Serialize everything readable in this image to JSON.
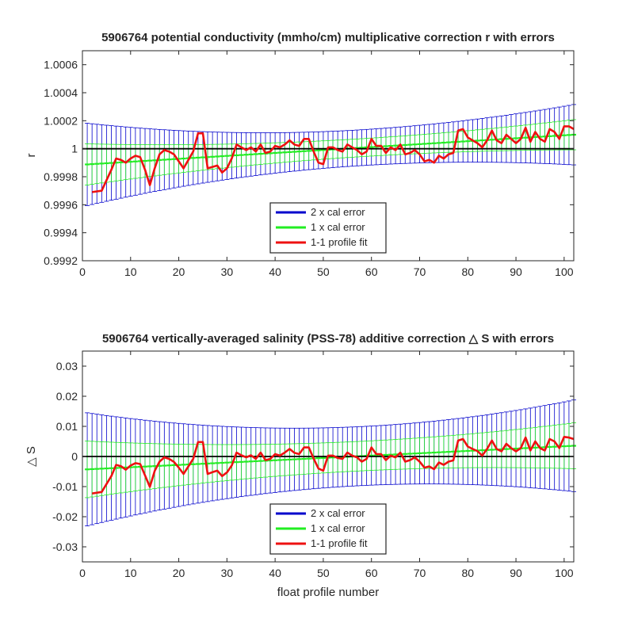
{
  "colors": {
    "cal2": "#0000cc",
    "cal1": "#22ee22",
    "fit": "#ee1111",
    "zero": "#000000",
    "axis": "#262626"
  },
  "chart_data": [
    {
      "type": "line",
      "title": "5906764 potential conductivity (mmho/cm) multiplicative correction r with errors",
      "ylabel": "r",
      "xlabel": "",
      "xlim": [
        0,
        102
      ],
      "ylim": [
        0.9992,
        1.0007
      ],
      "x_ticks": [
        0,
        10,
        20,
        30,
        40,
        50,
        60,
        70,
        80,
        90,
        100
      ],
      "y_ticks": [
        0.9992,
        0.9994,
        0.9996,
        0.9998,
        1,
        1.0002,
        1.0004,
        1.0006
      ],
      "y_tick_labels": [
        "0.9992",
        "0.9994",
        "0.9996",
        "0.9998",
        "1",
        "1.0002",
        "1.0004",
        "1.0006"
      ],
      "zero_line": 1,
      "legend": {
        "position": "bottom-center",
        "entries": [
          "2 x cal error",
          "1 x cal error",
          "1-1 profile fit"
        ]
      },
      "series": [
        {
          "name": "1-1 profile fit",
          "x": [
            2,
            4,
            6,
            7,
            8,
            9,
            10,
            11,
            12,
            13,
            14,
            15,
            16,
            17,
            18,
            19,
            20,
            21,
            22,
            23,
            24,
            25,
            26,
            27,
            28,
            29,
            30,
            31,
            32,
            33,
            34,
            35,
            36,
            37,
            38,
            39,
            40,
            41,
            42,
            43,
            44,
            45,
            46,
            47,
            48,
            49,
            50,
            51,
            52,
            53,
            54,
            55,
            56,
            57,
            58,
            59,
            60,
            61,
            62,
            63,
            64,
            65,
            66,
            67,
            68,
            69,
            70,
            71,
            72,
            73,
            74,
            75,
            76,
            77,
            78,
            79,
            80,
            81,
            82,
            83,
            84,
            85,
            86,
            87,
            88,
            89,
            90,
            91,
            92,
            93,
            94,
            95,
            96,
            97,
            98,
            99,
            100,
            101,
            102
          ],
          "y": [
            0.99969,
            0.9997,
            0.99985,
            0.99993,
            0.99992,
            0.9999,
            0.99993,
            0.99995,
            0.99994,
            0.99985,
            0.99974,
            0.99986,
            0.99996,
            0.99999,
            0.99998,
            0.99996,
            0.99991,
            0.99986,
            0.99992,
            0.99998,
            1.00011,
            1.00011,
            0.99986,
            0.99987,
            0.99988,
            0.99983,
            0.99986,
            0.99993,
            1.00003,
            1.00001,
            0.99999,
            1.00001,
            0.99998,
            1.00003,
            0.99997,
            0.99998,
            1.00002,
            1.00001,
            1.00003,
            1.00006,
            1.00003,
            1.00002,
            1.00007,
            1.00007,
            0.99998,
            0.9999,
            0.99989,
            1.00001,
            1.00001,
            0.99999,
            0.99998,
            1.00003,
            1.00001,
            0.99999,
            0.99996,
            0.99998,
            1.00007,
            1.00002,
            1.00002,
            0.99997,
            1.00001,
            0.99999,
            1.00003,
            0.99996,
            0.99997,
            0.99999,
            0.99996,
            0.99991,
            0.99992,
            0.9999,
            0.99995,
            0.99993,
            0.99996,
            0.99997,
            1.00013,
            1.00014,
            1.00008,
            1.00006,
            1.00004,
            1.00001,
            1.00006,
            1.00013,
            1.00006,
            1.00004,
            1.0001,
            1.00007,
            1.00004,
            1.00007,
            1.00015,
            1.00005,
            1.00012,
            1.00007,
            1.00005,
            1.00014,
            1.00012,
            1.00007,
            1.00016,
            1.00016,
            1.00014
          ]
        }
      ]
    },
    {
      "type": "line",
      "title": "5906764 vertically-averaged salinity (PSS-78) additive correction △ S with errors",
      "ylabel": "△ S",
      "xlabel": "float profile number",
      "xlim": [
        0,
        102
      ],
      "ylim": [
        -0.035,
        0.035
      ],
      "x_ticks": [
        0,
        10,
        20,
        30,
        40,
        50,
        60,
        70,
        80,
        90,
        100
      ],
      "y_ticks": [
        -0.03,
        -0.02,
        -0.01,
        0,
        0.01,
        0.02,
        0.03
      ],
      "y_tick_labels": [
        "-0.03",
        "-0.02",
        "-0.01",
        "0",
        "0.01",
        "0.02",
        "0.03"
      ],
      "zero_line": 0,
      "legend": {
        "position": "bottom-center",
        "entries": [
          "2 x cal error",
          "1 x cal error",
          "1-1 profile fit"
        ]
      },
      "series": [
        {
          "name": "1-1 profile fit",
          "x": [
            2,
            4,
            6,
            7,
            8,
            9,
            10,
            11,
            12,
            13,
            14,
            15,
            16,
            17,
            18,
            19,
            20,
            21,
            22,
            23,
            24,
            25,
            26,
            27,
            28,
            29,
            30,
            31,
            32,
            33,
            34,
            35,
            36,
            37,
            38,
            39,
            40,
            41,
            42,
            43,
            44,
            45,
            46,
            47,
            48,
            49,
            50,
            51,
            52,
            53,
            54,
            55,
            56,
            57,
            58,
            59,
            60,
            61,
            62,
            63,
            64,
            65,
            66,
            67,
            68,
            69,
            70,
            71,
            72,
            73,
            74,
            75,
            76,
            77,
            78,
            79,
            80,
            81,
            82,
            83,
            84,
            85,
            86,
            87,
            88,
            89,
            90,
            91,
            92,
            93,
            94,
            95,
            96,
            97,
            98,
            99,
            100,
            101,
            102
          ],
          "y": [
            -0.0123,
            -0.0118,
            -0.0065,
            -0.0028,
            -0.0032,
            -0.0044,
            -0.003,
            -0.0022,
            -0.0025,
            -0.0063,
            -0.0101,
            -0.0048,
            -0.0017,
            -0.0003,
            -0.0008,
            -0.0018,
            -0.0037,
            -0.0058,
            -0.0033,
            -0.0008,
            0.0048,
            0.0048,
            -0.0058,
            -0.0052,
            -0.0047,
            -0.0065,
            -0.0053,
            -0.003,
            0.0013,
            0.0004,
            -0.0003,
            0.0004,
            -0.0008,
            0.0013,
            -0.0012,
            -0.0008,
            0.0008,
            0.0003,
            0.0013,
            0.0025,
            0.0012,
            0.0008,
            0.003,
            0.003,
            -0.0007,
            -0.004,
            -0.0047,
            0.0003,
            0.0003,
            -0.0005,
            -0.0008,
            0.0013,
            0.0003,
            -0.0003,
            -0.0017,
            -0.0008,
            0.003,
            0.0008,
            0.0008,
            -0.0012,
            0.0003,
            -0.0003,
            0.0013,
            -0.0017,
            -0.0012,
            -0.0003,
            -0.0017,
            -0.0037,
            -0.0033,
            -0.0042,
            -0.002,
            -0.0028,
            -0.0017,
            -0.0013,
            0.0053,
            0.0058,
            0.0033,
            0.0025,
            0.0018,
            0.0003,
            0.0025,
            0.0053,
            0.0025,
            0.0017,
            0.0042,
            0.0028,
            0.0017,
            0.0028,
            0.0063,
            0.002,
            0.005,
            0.0028,
            0.002,
            0.0058,
            0.005,
            0.0028,
            0.0065,
            0.0063,
            0.0058
          ]
        }
      ]
    }
  ]
}
